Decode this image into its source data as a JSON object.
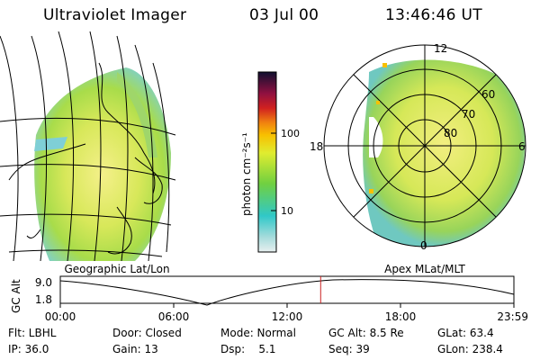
{
  "header": {
    "instrument": "Ultraviolet Imager",
    "date": "03 Jul 00",
    "time": "13:46:46 UT"
  },
  "colorbar": {
    "label": "photon cm⁻²s⁻¹",
    "ticks": [
      "100",
      "10"
    ]
  },
  "geo_panel": {
    "label": "Geographic Lat/Lon"
  },
  "polar_panel": {
    "label": "Apex MLat/MLT",
    "mlt_labels": {
      "top": "12",
      "left": "18",
      "right": "6",
      "bottom": "0"
    },
    "lat_labels": [
      "60",
      "70",
      "80"
    ]
  },
  "altitude_strip": {
    "ylabel": "GC Alt",
    "ymax": "9.0",
    "ymin": "1.8",
    "time_ticks": [
      "00:00",
      "06:00",
      "12:00",
      "18:00",
      "23:59"
    ],
    "current_time_fraction": 0.574,
    "marker_color": "#cc2222"
  },
  "footer": {
    "row1": [
      {
        "key": "flt",
        "text": "Flt: LBHL"
      },
      {
        "key": "door",
        "text": "Door: Closed"
      },
      {
        "key": "mode",
        "text": "Mode: Normal"
      },
      {
        "key": "gcalt",
        "text": "GC Alt: 8.5 Re"
      },
      {
        "key": "glat",
        "text": "GLat: 63.4"
      }
    ],
    "row2": [
      {
        "key": "ip",
        "text": "IP: 36.0"
      },
      {
        "key": "gain",
        "text": "Gain: 13"
      },
      {
        "key": "dsp",
        "text": "Dsp:    5.1"
      },
      {
        "key": "seq",
        "text": "Seq: 39"
      },
      {
        "key": "glon",
        "text": "GLon: 238.4"
      }
    ]
  }
}
